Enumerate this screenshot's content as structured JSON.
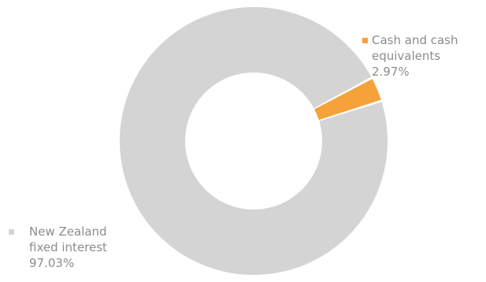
{
  "chart_data": {
    "type": "pie",
    "variant": "donut",
    "title": "",
    "categories": [
      "New Zealand fixed interest",
      "Cash and cash equivalents"
    ],
    "values": [
      97.03,
      2.97
    ],
    "unit": "%",
    "colors": [
      "#d4d4d4",
      "#f6a23a"
    ],
    "legend_placement": "beside slices",
    "legend": [
      {
        "label_lines": [
          "Cash and cash",
          "equivalents"
        ],
        "value_text": "2.97%",
        "color": "#f6a23a"
      },
      {
        "label_lines": [
          "New Zealand",
          "fixed interest"
        ],
        "value_text": "97.03%",
        "color": "#d4d4d4"
      }
    ]
  }
}
